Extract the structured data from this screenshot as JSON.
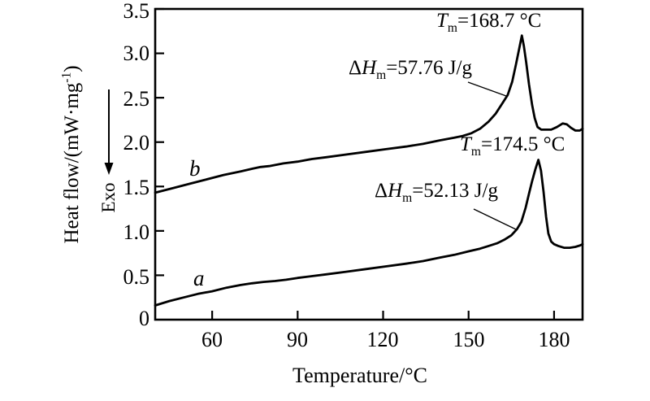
{
  "figure": {
    "background": "#ffffff",
    "ink": "#000000"
  },
  "axes": {
    "x_title": "Temperature/°C",
    "y_title_prefix": "Heat flow/(mW·mg",
    "y_title_sup": "-1",
    "y_title_suffix": ")",
    "exo_label": "Exo",
    "x_ticks": [
      "60",
      "90",
      "120",
      "150",
      "180"
    ],
    "y_ticks": [
      "3.5",
      "3.0",
      "2.5",
      "2.0",
      "1.5",
      "1.0",
      "0.5",
      "0"
    ]
  },
  "annotations": {
    "tm_b": {
      "sym": "T",
      "sub": "m",
      "rest": "=168.7 °C"
    },
    "dh_b": {
      "pre": "Δ",
      "sym": "H",
      "sub": "m",
      "rest": "=57.76 J/g"
    },
    "tm_a": {
      "sym": "T",
      "sub": "m",
      "rest": "=174.5 °C"
    },
    "dh_a": {
      "pre": "Δ",
      "sym": "H",
      "sub": "m",
      "rest": "=52.13 J/g"
    },
    "curve_b_label": "b",
    "curve_a_label": "a"
  },
  "chart_data": {
    "type": "line",
    "title": "",
    "xlabel": "Temperature/°C",
    "ylabel": "Heat flow/(mW·mg⁻¹)",
    "xlim": [
      40,
      190
    ],
    "ylim": [
      0,
      3.5
    ],
    "x_tick_values": [
      60,
      90,
      120,
      150,
      180
    ],
    "y_tick_values": [
      0.5,
      1.0,
      1.5,
      2.0,
      2.5,
      3.0,
      3.5
    ],
    "grid": false,
    "legend": "inline curve labels a, b",
    "exo_direction": "down",
    "series": [
      {
        "name": "b",
        "peak_tm_c": 168.7,
        "enthalpy_j_per_g": 57.76,
        "points": [
          [
            40,
            1.43
          ],
          [
            46,
            1.48
          ],
          [
            52,
            1.53
          ],
          [
            58,
            1.58
          ],
          [
            64,
            1.63
          ],
          [
            70,
            1.67
          ],
          [
            74,
            1.7
          ],
          [
            77,
            1.72
          ],
          [
            80,
            1.73
          ],
          [
            85,
            1.76
          ],
          [
            90,
            1.78
          ],
          [
            95,
            1.81
          ],
          [
            100,
            1.83
          ],
          [
            107,
            1.86
          ],
          [
            114,
            1.89
          ],
          [
            121,
            1.92
          ],
          [
            128,
            1.95
          ],
          [
            134,
            1.98
          ],
          [
            140,
            2.02
          ],
          [
            145,
            2.05
          ],
          [
            148,
            2.07
          ],
          [
            151,
            2.1
          ],
          [
            154,
            2.15
          ],
          [
            157,
            2.23
          ],
          [
            159.5,
            2.32
          ],
          [
            161.5,
            2.42
          ],
          [
            163.7,
            2.53
          ],
          [
            165.3,
            2.68
          ],
          [
            166.6,
            2.87
          ],
          [
            167.6,
            3.03
          ],
          [
            168.7,
            3.2
          ],
          [
            169.4,
            3.08
          ],
          [
            170.2,
            2.9
          ],
          [
            171.2,
            2.65
          ],
          [
            172.3,
            2.42
          ],
          [
            173.2,
            2.27
          ],
          [
            174.2,
            2.17
          ],
          [
            175.5,
            2.14
          ],
          [
            177,
            2.14
          ],
          [
            179,
            2.14
          ],
          [
            181,
            2.17
          ],
          [
            183,
            2.21
          ],
          [
            184.5,
            2.2
          ],
          [
            186,
            2.16
          ],
          [
            187.5,
            2.13
          ],
          [
            189,
            2.13
          ],
          [
            190,
            2.15
          ]
        ]
      },
      {
        "name": "a",
        "peak_tm_c": 174.5,
        "enthalpy_j_per_g": 52.13,
        "points": [
          [
            40,
            0.16
          ],
          [
            45,
            0.21
          ],
          [
            50,
            0.25
          ],
          [
            55,
            0.29
          ],
          [
            60,
            0.32
          ],
          [
            65,
            0.36
          ],
          [
            70,
            0.39
          ],
          [
            74,
            0.41
          ],
          [
            78,
            0.425
          ],
          [
            82,
            0.435
          ],
          [
            86,
            0.45
          ],
          [
            90,
            0.47
          ],
          [
            95,
            0.49
          ],
          [
            100,
            0.51
          ],
          [
            107,
            0.54
          ],
          [
            114,
            0.57
          ],
          [
            121,
            0.6
          ],
          [
            128,
            0.63
          ],
          [
            134,
            0.66
          ],
          [
            140,
            0.7
          ],
          [
            145,
            0.73
          ],
          [
            150,
            0.77
          ],
          [
            154,
            0.8
          ],
          [
            157,
            0.83
          ],
          [
            160,
            0.86
          ],
          [
            162.5,
            0.9
          ],
          [
            165,
            0.95
          ],
          [
            167,
            1.02
          ],
          [
            168.5,
            1.1
          ],
          [
            170,
            1.26
          ],
          [
            171.2,
            1.42
          ],
          [
            172.3,
            1.56
          ],
          [
            173.4,
            1.69
          ],
          [
            174.5,
            1.8
          ],
          [
            175.4,
            1.68
          ],
          [
            176.3,
            1.44
          ],
          [
            177.2,
            1.16
          ],
          [
            178,
            0.97
          ],
          [
            179,
            0.88
          ],
          [
            180,
            0.85
          ],
          [
            181.5,
            0.83
          ],
          [
            183.5,
            0.81
          ],
          [
            185.5,
            0.81
          ],
          [
            187.5,
            0.82
          ],
          [
            189,
            0.835
          ],
          [
            190,
            0.85
          ]
        ]
      }
    ]
  }
}
